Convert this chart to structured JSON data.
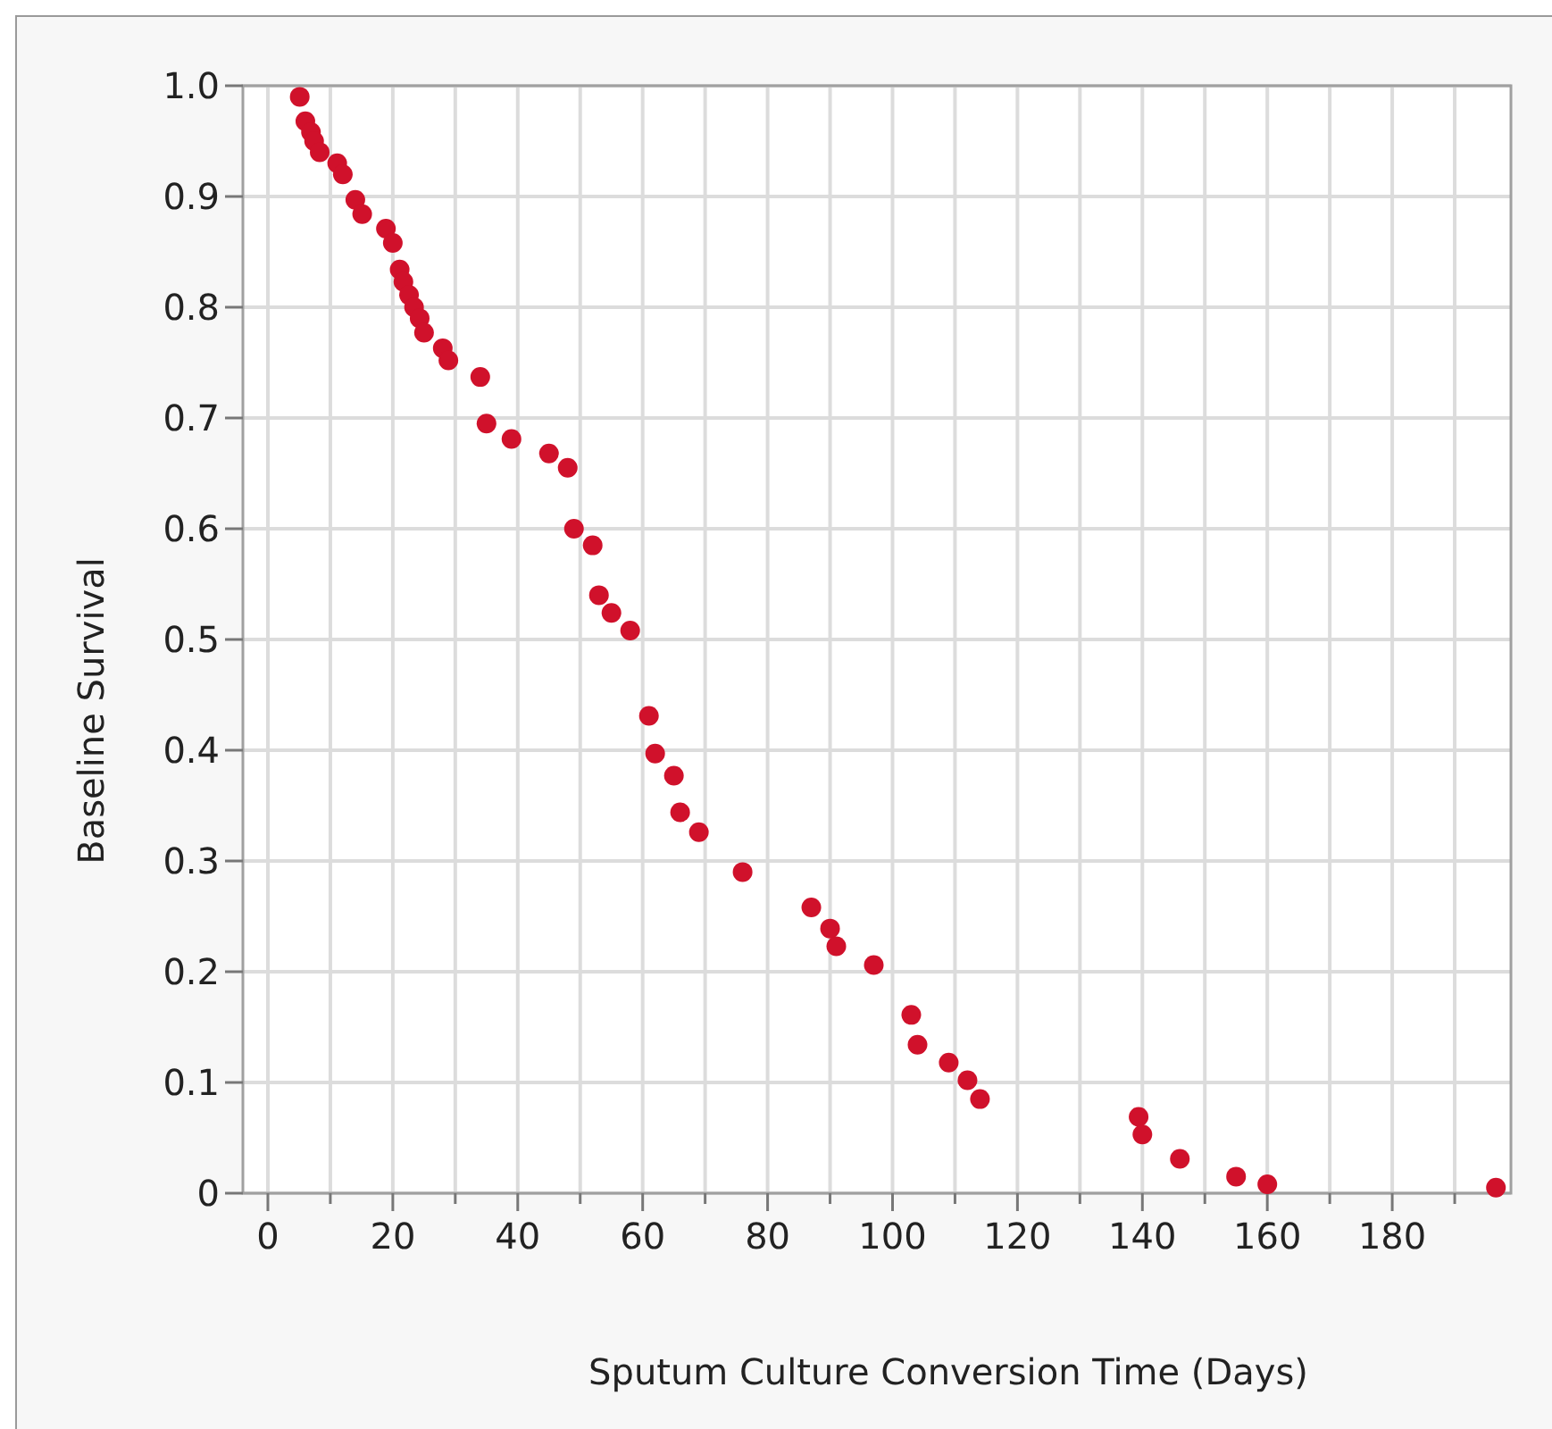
{
  "chart_data": {
    "type": "scatter",
    "xlabel": "Sputum Culture Conversion Time (Days)",
    "ylabel": "Baseline Survival",
    "x": [
      5.1,
      6,
      6.9,
      7.4,
      8.3,
      11.1,
      12,
      14,
      15.1,
      18.9,
      20,
      21.1,
      21.7,
      22.6,
      23.4,
      24.3,
      25,
      28,
      28.9,
      34,
      35,
      39,
      45,
      48,
      49,
      52,
      53,
      55,
      58,
      61,
      62,
      65,
      66,
      69,
      76,
      87,
      90,
      91,
      97,
      103,
      104,
      109,
      112,
      114,
      139.4,
      140,
      146,
      155,
      160,
      196.6
    ],
    "series": [
      {
        "color": "#d0112b",
        "values": [
          0.99,
          0.968,
          0.958,
          0.95,
          0.94,
          0.93,
          0.92,
          0.897,
          0.884,
          0.871,
          0.858,
          0.834,
          0.823,
          0.811,
          0.8,
          0.79,
          0.777,
          0.763,
          0.752,
          0.737,
          0.695,
          0.681,
          0.668,
          0.655,
          0.6,
          0.585,
          0.54,
          0.524,
          0.508,
          0.431,
          0.397,
          0.377,
          0.344,
          0.326,
          0.29,
          0.258,
          0.239,
          0.223,
          0.206,
          0.161,
          0.134,
          0.118,
          0.102,
          0.085,
          0.069,
          0.053,
          0.031,
          0.015,
          0.008,
          0.005
        ]
      }
    ],
    "xlim": [
      -4,
      199
    ],
    "xticks": [
      0,
      {
        "value": 10,
        "label": null
      },
      20,
      {
        "value": 30,
        "label": null
      },
      40,
      {
        "value": 50,
        "label": null
      },
      60,
      {
        "value": 70,
        "label": null
      },
      80,
      {
        "value": 90,
        "label": null
      },
      100,
      {
        "value": 110,
        "label": null
      },
      120,
      {
        "value": 130,
        "label": null
      },
      140,
      {
        "value": 150,
        "label": null
      },
      160,
      {
        "value": 170,
        "label": null
      },
      180,
      {
        "value": 190,
        "label": null
      }
    ],
    "ylim": [
      0,
      1
    ],
    "yticks": [
      0,
      0.1,
      0.2,
      0.3,
      0.4,
      0.5,
      0.6,
      0.7,
      0.8,
      0.9,
      {
        "value": 1,
        "label": "1.0"
      }
    ],
    "grid": true,
    "marker": "circle"
  }
}
